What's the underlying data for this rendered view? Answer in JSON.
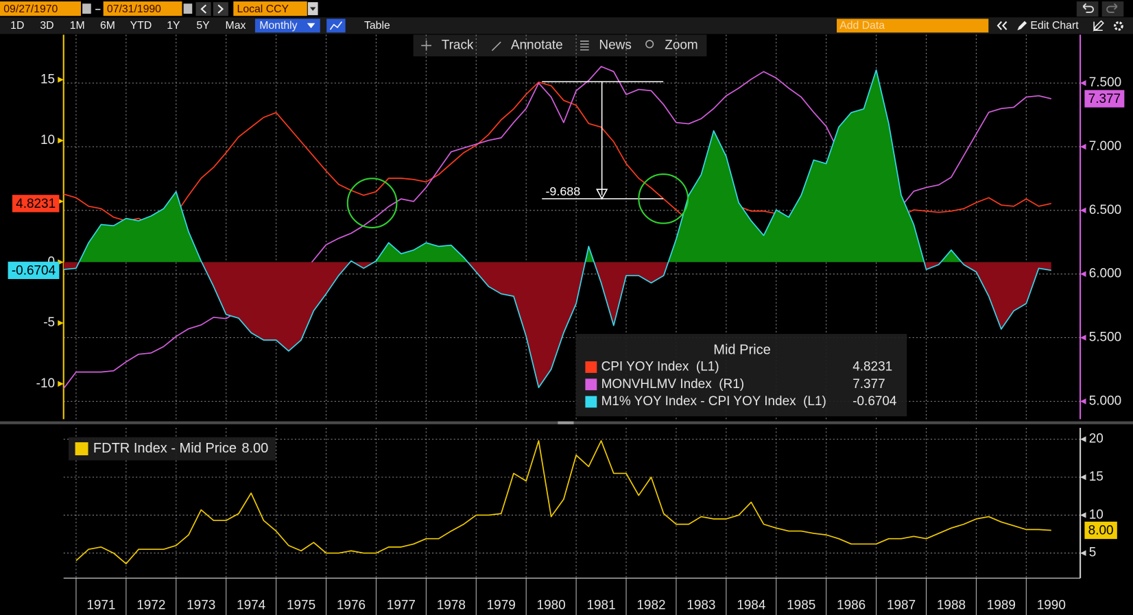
{
  "toolbar": {
    "start_date": "09/27/1970",
    "end_date": "07/31/1990",
    "currency": "Local CCY",
    "periods": [
      "1D",
      "3D",
      "1M",
      "6M",
      "YTD",
      "1Y",
      "5Y",
      "Max"
    ],
    "frequency": "Monthly",
    "table": "Table",
    "add_data": "Add Data",
    "edit_chart": "Edit Chart"
  },
  "chart_tools": [
    "Track",
    "Annotate",
    "News",
    "Zoom"
  ],
  "chart_data": [
    {
      "type": "line",
      "legend_title": "Mid Price",
      "annotation": "-9.688",
      "x": [
        1970.75,
        1971,
        1971.25,
        1971.5,
        1971.75,
        1972,
        1972.25,
        1972.5,
        1972.75,
        1973,
        1973.25,
        1973.5,
        1973.75,
        1974,
        1974.25,
        1974.5,
        1974.75,
        1975,
        1975.25,
        1975.5,
        1975.75,
        1976,
        1976.25,
        1976.5,
        1976.75,
        1977,
        1977.25,
        1977.5,
        1977.75,
        1978,
        1978.25,
        1978.5,
        1978.75,
        1979,
        1979.25,
        1979.5,
        1979.75,
        1980,
        1980.25,
        1980.5,
        1980.75,
        1981,
        1981.25,
        1981.5,
        1981.75,
        1982,
        1982.25,
        1982.5,
        1982.75,
        1983,
        1983.25,
        1983.5,
        1983.75,
        1984,
        1984.25,
        1984.5,
        1984.75,
        1985,
        1985.25,
        1985.5,
        1985.75,
        1986,
        1986.25,
        1986.5,
        1986.75,
        1987,
        1987.25,
        1987.5,
        1987.75,
        1988,
        1988.25,
        1988.5,
        1988.75,
        1989,
        1989.25,
        1989.5,
        1989.75,
        1990,
        1990.25,
        1990.5
      ],
      "xlim": [
        1970.75,
        1991.08
      ],
      "xticks": [
        1971,
        1972,
        1973,
        1974,
        1975,
        1976,
        1977,
        1978,
        1979,
        1980,
        1981,
        1982,
        1983,
        1984,
        1985,
        1986,
        1987,
        1988,
        1989,
        1990
      ],
      "x_labels": false,
      "ylim": [
        -12.9,
        18.7
      ],
      "yticks": [
        15,
        10,
        5,
        0,
        -5,
        -10
      ],
      "y_axis_side": "left",
      "y_axis_color": "#f2cc00",
      "y2lim": [
        4.86,
        7.88
      ],
      "y2ticks": [
        {
          "value": 7.5,
          "label": "7.500"
        },
        {
          "value": 7,
          "label": "7.000"
        },
        {
          "value": 6.5,
          "label": "6.500"
        },
        {
          "value": 6,
          "label": "6.000"
        },
        {
          "value": 5.5,
          "label": "5.500"
        },
        {
          "value": 5,
          "label": "5.000"
        }
      ],
      "y2_axis_color": "#d65fe0",
      "grid": "y2",
      "series": [
        {
          "name": "CPI YOY Index  (L1)",
          "color": "#ff3b1e",
          "last_value": 4.8231,
          "values": [
            5.6,
            5.3,
            4.6,
            4.4,
            3.7,
            3.4,
            3.6,
            3.1,
            3.4,
            4.0,
            5.5,
            6.9,
            7.8,
            9.0,
            10.3,
            11.1,
            11.9,
            12.3,
            11.1,
            9.9,
            8.7,
            7.5,
            6.4,
            5.9,
            5.5,
            5.8,
            6.9,
            6.9,
            6.8,
            6.6,
            7.2,
            8.1,
            9.0,
            9.6,
            10.5,
            11.7,
            12.6,
            13.8,
            14.8,
            14.5,
            13.3,
            12.9,
            11.4,
            11.1,
            9.9,
            8.1,
            6.9,
            6.1,
            5.2,
            4.3,
            3.4,
            2.5,
            3.1,
            4.0,
            4.6,
            4.2,
            4.2,
            4.0,
            3.7,
            3.7,
            3.4,
            4.3,
            2.2,
            1.6,
            1.6,
            1.3,
            3.1,
            3.8,
            4.3,
            4.2,
            4.1,
            4.2,
            4.4,
            4.9,
            5.3,
            4.7,
            4.6,
            5.2,
            4.6,
            4.8231
          ]
        },
        {
          "name": "MONVHLMV Index  (R1)",
          "color": "#d65fe0",
          "axis": "y2",
          "last_value": 7.377,
          "values": [
            5.1,
            5.23,
            5.23,
            5.23,
            5.24,
            5.31,
            5.37,
            5.38,
            5.43,
            5.51,
            5.57,
            5.6,
            5.66,
            5.65,
            5.71,
            5.78,
            5.85,
            5.88,
            5.91,
            5.99,
            6.11,
            6.23,
            6.28,
            6.32,
            6.38,
            6.45,
            6.53,
            6.59,
            6.57,
            6.68,
            6.82,
            6.96,
            6.99,
            7.02,
            7.05,
            7.07,
            7.19,
            7.3,
            7.5,
            7.39,
            7.19,
            7.44,
            7.52,
            7.63,
            7.59,
            7.41,
            7.45,
            7.44,
            7.33,
            7.19,
            7.18,
            7.22,
            7.3,
            7.4,
            7.46,
            7.53,
            7.59,
            7.54,
            7.46,
            7.39,
            7.27,
            7.16,
            6.96,
            6.73,
            6.55,
            6.46,
            6.46,
            6.53,
            6.65,
            6.68,
            6.7,
            6.76,
            6.93,
            7.1,
            7.27,
            7.3,
            7.31,
            7.39,
            7.4,
            7.377
          ]
        },
        {
          "name": "M1% YOY Index - CPI YOY Index  (L1)",
          "color": "#35d9ee",
          "fill_above": "#0b8a0b",
          "fill_below": "#8a0b18",
          "last_value": -0.6704,
          "values": [
            -0.6,
            -0.5,
            1.6,
            3.1,
            3.0,
            3.6,
            3.4,
            3.8,
            4.4,
            5.8,
            2.5,
            0.1,
            -2.0,
            -4.3,
            -4.6,
            -5.8,
            -6.4,
            -6.4,
            -7.3,
            -6.4,
            -4.0,
            -2.6,
            -1.1,
            0.1,
            -0.5,
            0.1,
            1.6,
            0.7,
            1.0,
            1.6,
            1.3,
            1.4,
            0.4,
            -0.8,
            -2.0,
            -2.6,
            -2.8,
            -6.1,
            -10.3,
            -8.8,
            -5.8,
            -3.4,
            1.3,
            -1.7,
            -5.2,
            -1.1,
            -1.1,
            -1.7,
            -1.1,
            1.9,
            5.5,
            7.2,
            10.8,
            8.7,
            4.9,
            3.4,
            2.2,
            4.3,
            3.7,
            5.5,
            8.4,
            8.1,
            11.1,
            12.3,
            12.6,
            15.8,
            11.4,
            5.5,
            3.1,
            -0.6,
            -0.2,
            1.0,
            -0.2,
            -0.8,
            -2.8,
            -5.5,
            -4.0,
            -3.4,
            -0.5,
            -0.6704
          ]
        }
      ]
    },
    {
      "type": "line",
      "x": [
        1970.75,
        1971,
        1971.25,
        1971.5,
        1971.75,
        1972,
        1972.25,
        1972.5,
        1972.75,
        1973,
        1973.25,
        1973.5,
        1973.75,
        1974,
        1974.25,
        1974.5,
        1974.75,
        1975,
        1975.25,
        1975.5,
        1975.75,
        1976,
        1976.25,
        1976.5,
        1976.75,
        1977,
        1977.25,
        1977.5,
        1977.75,
        1978,
        1978.25,
        1978.5,
        1978.75,
        1979,
        1979.25,
        1979.5,
        1979.75,
        1980,
        1980.25,
        1980.5,
        1980.75,
        1981,
        1981.25,
        1981.5,
        1981.75,
        1982,
        1982.25,
        1982.5,
        1982.75,
        1983,
        1983.25,
        1983.5,
        1983.75,
        1984,
        1984.25,
        1984.5,
        1984.75,
        1985,
        1985.25,
        1985.5,
        1985.75,
        1986,
        1986.25,
        1986.5,
        1986.75,
        1987,
        1987.25,
        1987.5,
        1987.75,
        1988,
        1988.25,
        1988.5,
        1988.75,
        1989,
        1989.25,
        1989.5,
        1989.75,
        1990,
        1990.25,
        1990.5
      ],
      "xlim": [
        1970.75,
        1991.08
      ],
      "xticks": [
        1971,
        1972,
        1973,
        1974,
        1975,
        1976,
        1977,
        1978,
        1979,
        1980,
        1981,
        1982,
        1983,
        1984,
        1985,
        1986,
        1987,
        1988,
        1989,
        1990
      ],
      "x_labels": true,
      "ylim": [
        1.7,
        21.5
      ],
      "yticks": [
        20,
        15,
        10,
        5
      ],
      "y_axis_side": "right",
      "y_axis_color": "#cfcfcf",
      "grid": "y",
      "series": [
        {
          "name": "FDTR Index - Mid Price",
          "color": "#f2cc00",
          "last_value": {
            "value": 8,
            "label": "8.00"
          },
          "values": [
            null,
            4.0,
            5.5,
            5.8,
            5.0,
            3.6,
            5.5,
            5.5,
            5.5,
            6.0,
            7.4,
            10.7,
            9.3,
            9.3,
            10.2,
            12.9,
            9.3,
            7.9,
            6.0,
            5.3,
            6.4,
            5.0,
            5.0,
            5.3,
            5.0,
            5.0,
            5.8,
            5.8,
            6.2,
            6.9,
            6.9,
            7.9,
            8.8,
            10.0,
            10.0,
            10.2,
            15.5,
            14.5,
            19.8,
            9.8,
            12.1,
            17.9,
            16.4,
            19.8,
            15.5,
            15.5,
            12.6,
            15.0,
            10.2,
            8.8,
            8.8,
            9.8,
            9.5,
            9.5,
            10.0,
            11.7,
            8.8,
            8.3,
            7.9,
            7.9,
            7.6,
            7.4,
            6.9,
            6.2,
            6.2,
            6.2,
            6.9,
            6.9,
            7.2,
            6.9,
            7.6,
            8.3,
            8.8,
            9.5,
            9.8,
            9.1,
            8.6,
            8.1,
            8.1,
            8
          ]
        }
      ]
    }
  ]
}
